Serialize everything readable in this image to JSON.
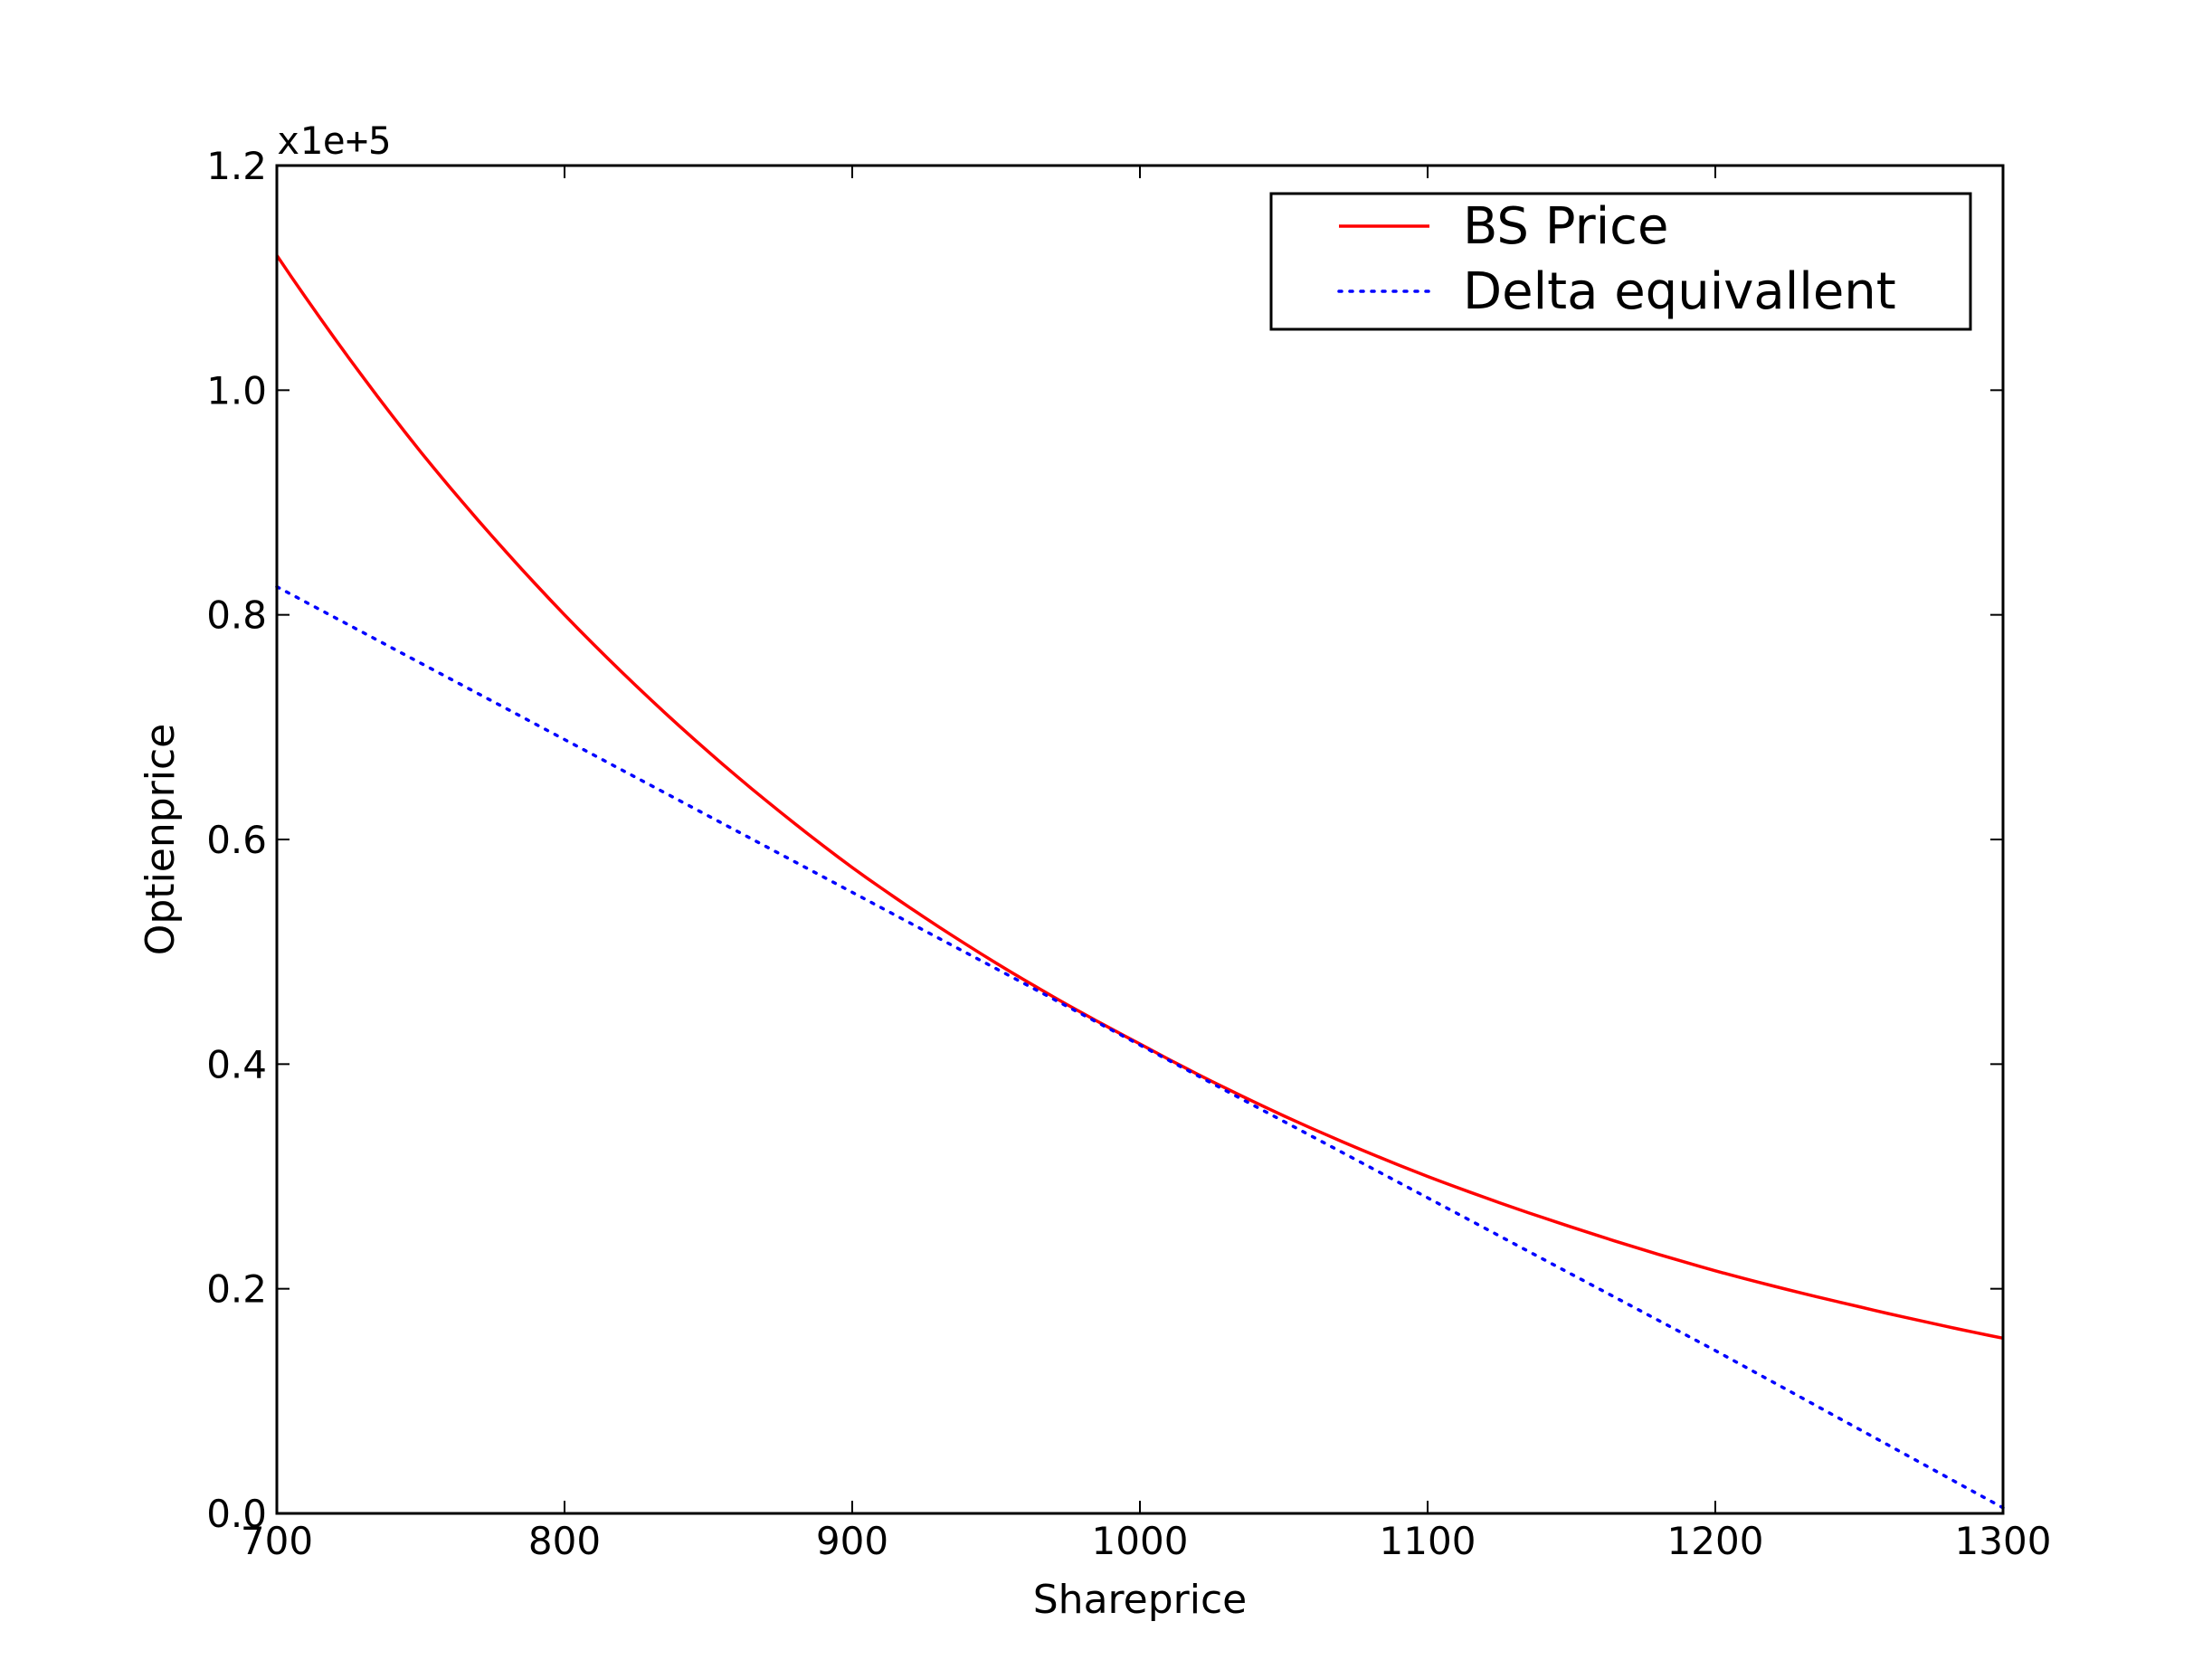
{
  "chart_data": {
    "type": "line",
    "xlabel": "Shareprice",
    "ylabel": "Optienprice",
    "xlim": [
      700,
      1300
    ],
    "ylim": [
      0.0,
      1.2
    ],
    "y_offset_label": "x1e+5",
    "xticks": [
      700,
      800,
      900,
      1000,
      1100,
      1200,
      1300
    ],
    "xtick_labels": [
      "700",
      "800",
      "900",
      "1000",
      "1100",
      "1200",
      "1300"
    ],
    "yticks": [
      0.0,
      0.2,
      0.4,
      0.6,
      0.8,
      1.0,
      1.2
    ],
    "ytick_labels": [
      "0.0",
      "0.2",
      "0.4",
      "0.6",
      "0.8",
      "1.0",
      "1.2"
    ],
    "grid": false,
    "legend_position": "top-right",
    "series": [
      {
        "name": "BS Price",
        "color": "#ff0000",
        "style": "solid",
        "x": [
          700,
          750,
          800,
          850,
          900,
          950,
          1000,
          1050,
          1100,
          1150,
          1200,
          1250,
          1300
        ],
        "y": [
          1.12,
          0.945,
          0.8,
          0.678,
          0.575,
          0.49,
          0.418,
          0.354,
          0.3,
          0.255,
          0.216,
          0.184,
          0.156
        ]
      },
      {
        "name": "Delta equivallent",
        "color": "#0000ff",
        "style": "dotted",
        "x": [
          700,
          800,
          900,
          1000,
          1100,
          1200,
          1300
        ],
        "y": [
          0.825,
          0.689,
          0.553,
          0.417,
          0.281,
          0.145,
          0.005
        ]
      }
    ]
  }
}
